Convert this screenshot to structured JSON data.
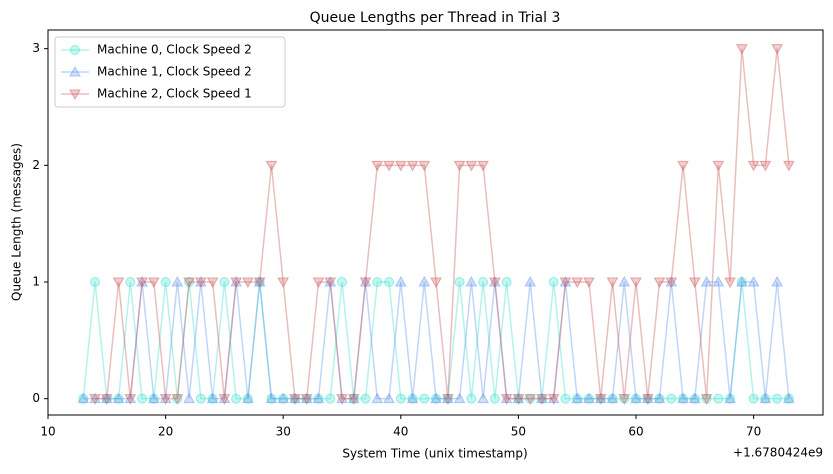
{
  "chart_data": {
    "type": "line",
    "title": "Queue Lengths per Thread in Trial 3",
    "xlabel": "System Time (unix timestamp)",
    "ylabel": "Queue Length (messages)",
    "x_offset_text": "+1.6780424e9",
    "xlim": [
      10,
      75.9
    ],
    "ylim": [
      -0.14,
      3.16
    ],
    "xticks": [
      10,
      20,
      30,
      40,
      50,
      60,
      70
    ],
    "yticks": [
      0,
      1,
      2,
      3
    ],
    "legend": "upper left",
    "series": [
      {
        "name": "Machine 0, Clock Speed 2",
        "color": "#40e0d0",
        "marker": "o",
        "x": [
          13,
          14,
          15,
          16,
          17,
          18,
          19,
          20,
          21,
          22,
          23,
          24,
          25,
          26,
          27,
          28,
          29,
          30,
          31,
          32,
          33,
          34,
          35,
          36,
          37,
          38,
          39,
          40,
          41,
          42,
          43,
          44,
          45,
          46,
          47,
          48,
          49,
          50,
          51,
          52,
          53,
          54,
          55,
          56,
          57,
          58,
          59,
          60,
          61,
          62,
          63,
          64,
          65,
          66,
          67,
          68,
          69,
          70,
          71,
          72,
          73
        ],
        "values": [
          0,
          1,
          0,
          0,
          1,
          0,
          0,
          1,
          0,
          1,
          0,
          0,
          1,
          0,
          0,
          1,
          0,
          0,
          0,
          0,
          0,
          0,
          1,
          0,
          0,
          1,
          1,
          0,
          0,
          0,
          0,
          0,
          1,
          0,
          1,
          0,
          1,
          0,
          0,
          0,
          1,
          0,
          0,
          0,
          0,
          0,
          0,
          0,
          0,
          0,
          0,
          0,
          0,
          0,
          0,
          0,
          1,
          0,
          0,
          0,
          0
        ]
      },
      {
        "name": "Machine 1, Clock Speed 2",
        "color": "#6495ed",
        "marker": "^",
        "x": [
          13,
          14,
          15,
          16,
          17,
          18,
          19,
          20,
          21,
          22,
          23,
          24,
          25,
          26,
          27,
          28,
          29,
          30,
          31,
          32,
          33,
          34,
          35,
          36,
          37,
          38,
          39,
          40,
          41,
          42,
          43,
          44,
          45,
          46,
          47,
          48,
          49,
          50,
          51,
          52,
          53,
          54,
          55,
          56,
          57,
          58,
          59,
          60,
          61,
          62,
          63,
          64,
          65,
          66,
          67,
          68,
          69,
          70,
          71,
          72,
          73
        ],
        "values": [
          0,
          0,
          0,
          0,
          0,
          1,
          0,
          0,
          1,
          0,
          1,
          0,
          0,
          1,
          0,
          1,
          0,
          0,
          0,
          0,
          0,
          1,
          0,
          0,
          1,
          0,
          0,
          1,
          0,
          1,
          0,
          0,
          0,
          1,
          0,
          1,
          0,
          0,
          1,
          0,
          0,
          1,
          0,
          0,
          0,
          0,
          1,
          0,
          0,
          0,
          1,
          0,
          0,
          1,
          1,
          0,
          1,
          1,
          0,
          1,
          0
        ]
      },
      {
        "name": "Machine 2, Clock Speed 1",
        "color": "#cd5c5c",
        "marker": "v",
        "x": [
          14,
          15,
          16,
          17,
          18,
          19,
          20,
          21,
          22,
          23,
          24,
          25,
          26,
          27,
          28,
          29,
          30,
          31,
          32,
          33,
          34,
          35,
          36,
          37,
          38,
          39,
          40,
          41,
          42,
          43,
          44,
          45,
          46,
          47,
          48,
          49,
          50,
          51,
          52,
          53,
          54,
          55,
          56,
          57,
          58,
          59,
          60,
          61,
          62,
          63,
          64,
          65,
          66,
          67,
          68,
          69,
          70,
          71,
          72,
          73
        ],
        "values": [
          0,
          0,
          1,
          0,
          1,
          1,
          0,
          0,
          1,
          1,
          1,
          0,
          1,
          1,
          1,
          2,
          1,
          0,
          0,
          1,
          1,
          0,
          0,
          1,
          2,
          2,
          2,
          2,
          2,
          1,
          0,
          2,
          2,
          2,
          1,
          0,
          0,
          0,
          0,
          0,
          1,
          1,
          1,
          0,
          1,
          0,
          1,
          0,
          1,
          1,
          2,
          1,
          0,
          2,
          1,
          3,
          2,
          2,
          3,
          2
        ]
      }
    ]
  }
}
